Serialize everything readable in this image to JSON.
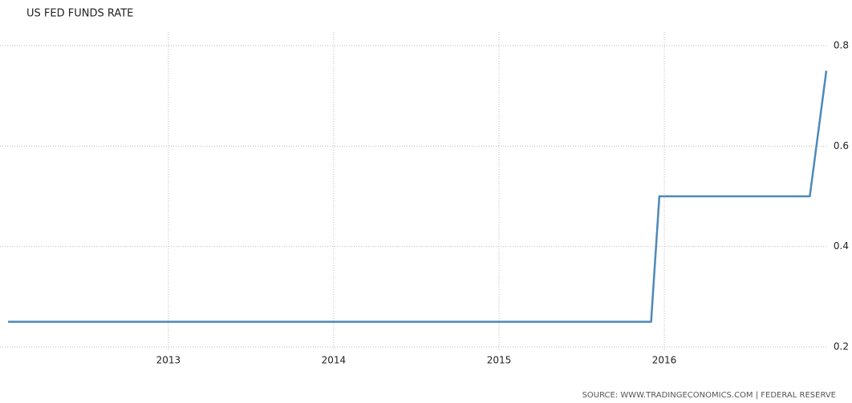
{
  "chart_data": {
    "type": "line",
    "title": "US FED FUNDS RATE",
    "source": "SOURCE: WWW.TRADINGECONOMICS.COM | FEDERAL RESERVE",
    "x": [
      2012.03,
      2015.92,
      2015.97,
      2016.88,
      2016.98
    ],
    "series": [
      {
        "name": "US Fed Funds Rate",
        "color": "#4d89b8",
        "values": [
          0.25,
          0.25,
          0.5,
          0.5,
          0.75
        ]
      }
    ],
    "xlim": [
      2012.03,
      2016.98
    ],
    "xticks": [
      2013,
      2014,
      2015,
      2016
    ],
    "ylim": [
      0.2,
      0.8
    ],
    "yticks": [
      0.2,
      0.4,
      0.6,
      0.8
    ],
    "grid": true,
    "yaxis_side": "right"
  }
}
